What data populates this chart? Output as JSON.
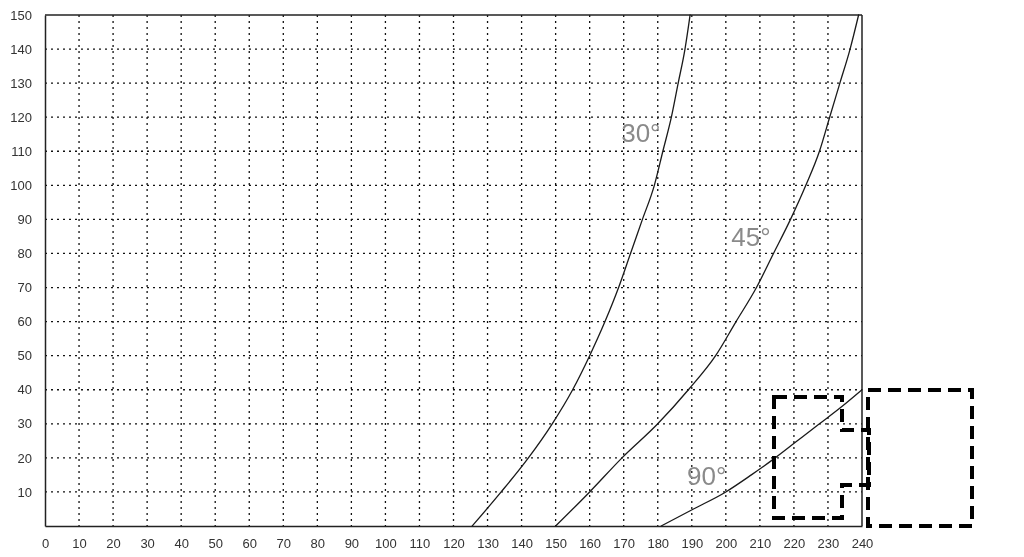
{
  "chart_data": {
    "type": "line",
    "xlim": [
      0,
      240
    ],
    "xticks": [
      0,
      10,
      20,
      30,
      40,
      50,
      60,
      70,
      80,
      90,
      100,
      110,
      120,
      130,
      140,
      150,
      160,
      170,
      180,
      190,
      200,
      210,
      220,
      230,
      240
    ],
    "ylim": [
      0,
      150
    ],
    "yticks": [
      10,
      20,
      30,
      40,
      50,
      60,
      70,
      80,
      90,
      100,
      110,
      120,
      130,
      140,
      150
    ],
    "grid": true,
    "series": [
      {
        "name": "30°",
        "color": "#1a1a1a",
        "x": [
          125.5,
          134,
          142,
          149,
          155,
          160,
          164.5,
          168.5,
          172,
          175.5,
          179,
          181.5,
          184,
          186,
          188,
          189.5
        ],
        "values": [
          0,
          10,
          20,
          30,
          40,
          50,
          60,
          70,
          80,
          90,
          100,
          110,
          120,
          130,
          140,
          150
        ]
      },
      {
        "name": "45°",
        "color": "#1a1a1a",
        "x": [
          150,
          160,
          169.5,
          180,
          189,
          197,
          203,
          209,
          214,
          219,
          223.5,
          227.5,
          230.5,
          233.5,
          236.5,
          239
        ],
        "values": [
          0,
          10,
          20,
          30,
          40,
          50,
          60,
          70,
          80,
          90,
          100,
          110,
          120,
          130,
          140,
          150
        ]
      },
      {
        "name": "90°",
        "color": "#1a1a1a",
        "x": [
          181,
          190.5,
          200,
          207.5,
          214.5,
          221,
          227.5,
          234,
          240
        ],
        "values": [
          0,
          5,
          10,
          15,
          20,
          25,
          30,
          35,
          40
        ]
      }
    ]
  }
}
